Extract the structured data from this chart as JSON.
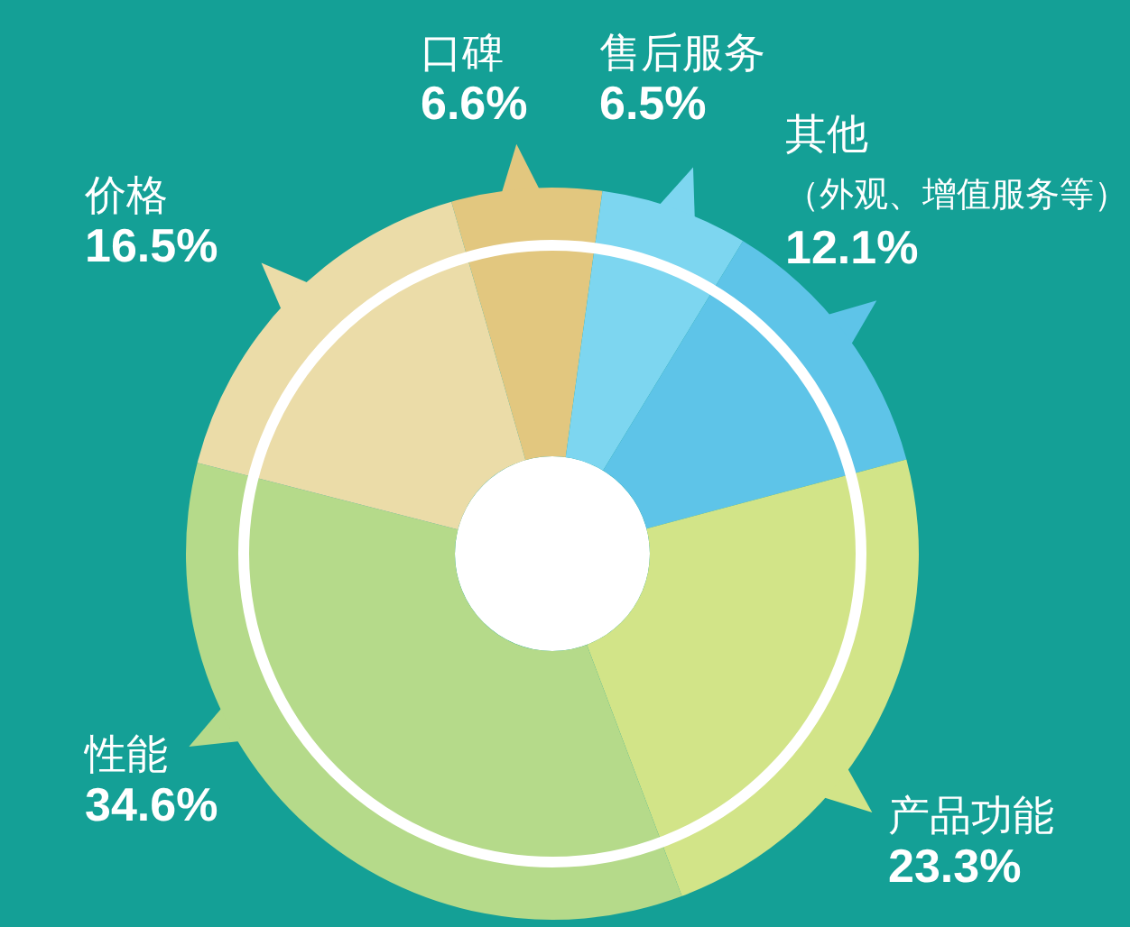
{
  "chart_data": {
    "type": "donut",
    "categories": [
      "口碑",
      "售后服务",
      "其他（外观、增值服务等）",
      "产品功能",
      "性能",
      "价格"
    ],
    "values": [
      6.6,
      6.5,
      12.1,
      23.3,
      34.6,
      16.5
    ],
    "value_labels": [
      "6.6%",
      "6.5%",
      "12.1%",
      "23.3%",
      "34.6%",
      "16.5%"
    ],
    "colors": [
      "#e2c77f",
      "#7dd6f0",
      "#5ec4e8",
      "#d2e488",
      "#b5da8a",
      "#ebdca8"
    ]
  }
}
